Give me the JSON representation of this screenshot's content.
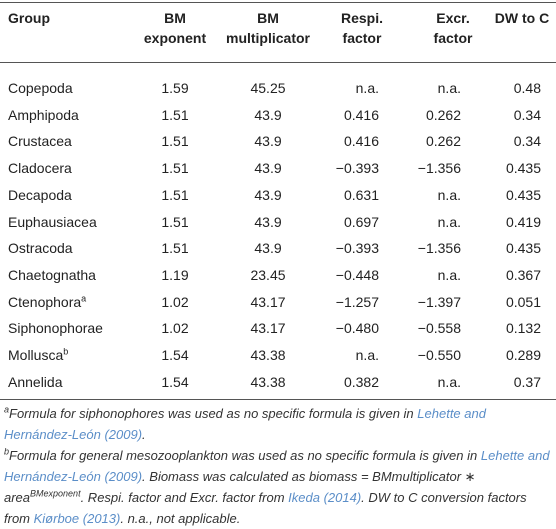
{
  "table": {
    "header": [
      [
        "Group"
      ],
      [
        "BM",
        "exponent"
      ],
      [
        "BM",
        "multiplicator"
      ],
      [
        "Respi.",
        "factor"
      ],
      [
        "Excr.",
        "factor"
      ],
      [
        "DW to C"
      ]
    ],
    "rows": [
      {
        "cells": [
          "Copepoda",
          "1.59",
          "45.25",
          "n.a.",
          "n.a.",
          "0.48"
        ]
      },
      {
        "cells": [
          "Amphipoda",
          "1.51",
          "43.9",
          "0.416",
          "0.262",
          "0.34"
        ]
      },
      {
        "cells": [
          "Crustacea",
          "1.51",
          "43.9",
          "0.416",
          "0.262",
          "0.34"
        ]
      },
      {
        "cells": [
          "Cladocera",
          "1.51",
          "43.9",
          "−0.393",
          "−1.356",
          "0.435"
        ]
      },
      {
        "cells": [
          "Decapoda",
          "1.51",
          "43.9",
          "0.631",
          "n.a.",
          "0.435"
        ]
      },
      {
        "cells": [
          "Euphausiacea",
          "1.51",
          "43.9",
          "0.697",
          "n.a.",
          "0.419"
        ]
      },
      {
        "cells": [
          "Ostracoda",
          "1.51",
          "43.9",
          "−0.393",
          "−1.356",
          "0.435"
        ]
      },
      {
        "cells": [
          "Chaetognatha",
          "1.19",
          "23.45",
          "−0.448",
          "n.a.",
          "0.367"
        ]
      },
      {
        "cells": [
          "Ctenophora",
          "1.02",
          "43.17",
          "−1.257",
          "−1.397",
          "0.051"
        ],
        "note": "a"
      },
      {
        "cells": [
          "Siphonophorae",
          "1.02",
          "43.17",
          "−0.480",
          "−0.558",
          "0.132"
        ]
      },
      {
        "cells": [
          "Mollusca",
          "1.54",
          "43.38",
          "n.a.",
          "−0.550",
          "0.289"
        ],
        "note": "b"
      },
      {
        "cells": [
          "Annelida",
          "1.54",
          "43.38",
          "0.382",
          "n.a.",
          "0.37"
        ]
      }
    ],
    "footnotes": [
      {
        "mark": "a",
        "parts": [
          "Formula for siphonophores was used as no specific formula is given in ",
          "Lehette and Hernández-León (2009)",
          "."
        ]
      },
      {
        "mark": "b",
        "parts": [
          "Formula for general mesozooplankton was used as no specific formula is given in ",
          "Lehette and Hernández-León (2009)",
          ". Biomass was calculated as biomass = BMmultiplicator ∗ area",
          "BMexponent",
          ". Respi. factor and Excr. factor from ",
          "Ikeda (2014)",
          ". DW to C conversion factors from ",
          "Kiørboe (2013)",
          ". n.a., not applicable."
        ]
      }
    ]
  }
}
